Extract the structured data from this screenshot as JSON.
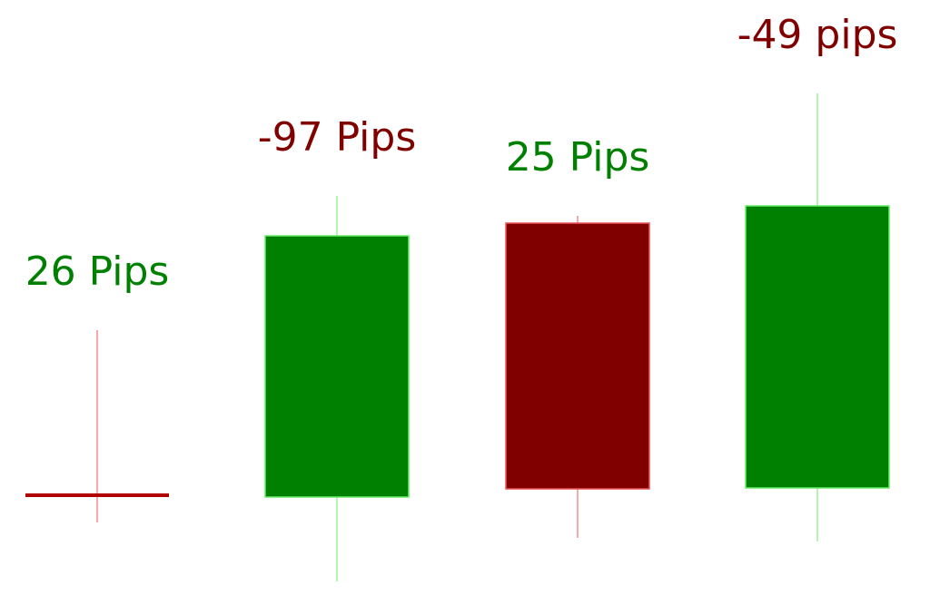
{
  "chart_data": {
    "type": "candlestick",
    "title": "",
    "xlabel": "",
    "ylabel": "",
    "ylim": [
      0,
      656
    ],
    "grid": false,
    "legend": "none",
    "colors": {
      "bullish": "#008000",
      "bearish": "#800000",
      "bullish_wick": "#66ee66",
      "bearish_wick": "#ee5555",
      "doji": "#b00000"
    },
    "candles": [
      {
        "label": "26 Pips",
        "label_color": "#008000",
        "direction": "doji",
        "open": 110,
        "close": 110,
        "high": 292,
        "low": 80
      },
      {
        "label": "-97 Pips",
        "label_color": "#800000",
        "direction": "bullish",
        "open": 108,
        "close": 396,
        "high": 440,
        "low": 15
      },
      {
        "label": "25 Pips",
        "label_color": "#008000",
        "direction": "bearish",
        "open": 410,
        "close": 117,
        "high": 418,
        "low": 63
      },
      {
        "label": "-49 pips",
        "label_color": "#800000",
        "direction": "bullish",
        "open": 118,
        "close": 429,
        "high": 553,
        "low": 59
      }
    ]
  }
}
